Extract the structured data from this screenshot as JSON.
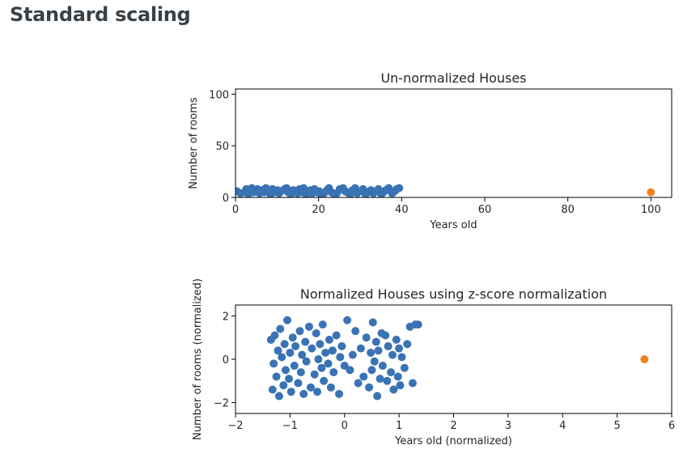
{
  "page": {
    "heading": "Standard scaling"
  },
  "chart_data": [
    {
      "type": "scatter",
      "title": "Un-normalized Houses",
      "xlabel": "Years old",
      "ylabel": "Number of rooms",
      "xlim": [
        0,
        105
      ],
      "ylim": [
        0,
        105
      ],
      "xticks": [
        "0",
        "20",
        "40",
        "60",
        "80",
        "100"
      ],
      "yticks": [
        "0",
        "50",
        "100"
      ],
      "series": [
        {
          "color": "#3a73b4",
          "x": [
            0.3,
            1.2,
            2.1,
            2.6,
            3.1,
            3.6,
            3.9,
            4.4,
            4.8,
            5.3,
            5.8,
            6.4,
            6.9,
            7.3,
            7.8,
            8.4,
            8.9,
            9.5,
            10.1,
            10.5,
            11.0,
            11.8,
            12.3,
            12.7,
            13.3,
            13.9,
            14.3,
            14.9,
            15.4,
            15.9,
            16.4,
            17.0,
            17.6,
            18.1,
            18.5,
            19.0,
            19.6,
            20.1,
            20.6,
            21.3,
            22.0,
            22.5,
            23.1,
            23.8,
            24.4,
            25.1,
            25.9,
            26.4,
            26.9,
            27.6,
            28.2,
            28.8,
            29.3,
            29.9,
            30.7,
            31.3,
            32.0,
            32.6,
            33.2,
            33.9,
            34.4,
            35.1,
            35.6,
            36.2,
            36.9,
            37.7,
            38.3,
            38.8,
            39.4
          ],
          "y": [
            6,
            4,
            5,
            8,
            3,
            7,
            9,
            5,
            6,
            8,
            4,
            7,
            5,
            9,
            6,
            3,
            8,
            5,
            7,
            4,
            6,
            8,
            9,
            5,
            3,
            7,
            6,
            4,
            8,
            5,
            9,
            3,
            6,
            7,
            4,
            8,
            5,
            6,
            3,
            4,
            7,
            9,
            5,
            3,
            4,
            8,
            9,
            6,
            5,
            3,
            7,
            9,
            4,
            6,
            8,
            3,
            5,
            7,
            4,
            6,
            8,
            3,
            5,
            7,
            9,
            4,
            6,
            8,
            9
          ]
        },
        {
          "color": "#f08220",
          "x": [
            100
          ],
          "y": [
            5
          ]
        }
      ]
    },
    {
      "type": "scatter",
      "title": "Normalized Houses using z-score normalization",
      "xlabel": "Years old (normalized)",
      "ylabel": "Number of rooms (normalized)",
      "xlim": [
        -2,
        6
      ],
      "ylim": [
        -2.5,
        2.5
      ],
      "xticks": [
        "−2",
        "−1",
        "0",
        "1",
        "2",
        "3",
        "4",
        "5",
        "6"
      ],
      "yticks": [
        "−2",
        "0",
        "2"
      ],
      "series": [
        {
          "color": "#3a73b4",
          "x": [
            -1.35,
            -1.32,
            -1.3,
            -1.28,
            -1.25,
            -1.22,
            -1.2,
            -1.18,
            -1.15,
            -1.12,
            -1.1,
            -1.08,
            -1.05,
            -1.02,
            -1.0,
            -0.98,
            -0.95,
            -0.92,
            -0.9,
            -0.85,
            -0.82,
            -0.8,
            -0.78,
            -0.75,
            -0.72,
            -0.7,
            -0.65,
            -0.62,
            -0.6,
            -0.55,
            -0.52,
            -0.5,
            -0.48,
            -0.45,
            -0.42,
            -0.4,
            -0.38,
            -0.35,
            -0.3,
            -0.28,
            -0.25,
            -0.22,
            -0.2,
            -0.15,
            -0.1,
            -0.08,
            -0.05,
            0.0,
            0.05,
            0.1,
            0.15,
            0.2,
            0.25,
            0.3,
            0.35,
            0.4,
            0.45,
            0.48,
            0.5,
            0.52,
            0.55,
            0.58,
            0.6,
            0.62,
            0.65,
            0.68,
            0.7,
            0.75,
            0.78,
            0.8,
            0.85,
            0.88,
            0.9,
            0.95,
            0.98,
            1.0,
            1.02,
            1.05,
            1.1,
            1.15,
            1.2,
            1.25,
            1.3,
            1.35
          ],
          "y": [
            0.9,
            -1.4,
            -0.2,
            1.1,
            -0.8,
            0.4,
            -1.7,
            1.4,
            0.1,
            -1.2,
            0.7,
            -0.5,
            1.8,
            -0.9,
            0.3,
            -1.5,
            1.0,
            -0.3,
            0.6,
            -1.1,
            1.3,
            -0.6,
            0.2,
            -1.6,
            0.8,
            -0.1,
            1.5,
            -1.3,
            0.5,
            -0.7,
            1.2,
            -1.5,
            0.0,
            0.7,
            -0.4,
            1.6,
            -1.0,
            0.3,
            -0.2,
            0.9,
            -1.3,
            0.4,
            -0.6,
            1.1,
            -1.6,
            0.1,
            0.6,
            -0.3,
            1.8,
            -0.5,
            0.2,
            1.3,
            -1.1,
            0.5,
            -0.8,
            1.0,
            -1.3,
            0.3,
            -0.5,
            1.7,
            -0.1,
            0.8,
            -1.7,
            0.4,
            -0.9,
            1.2,
            -0.3,
            1.1,
            -1.0,
            0.6,
            -0.6,
            0.2,
            -1.4,
            0.9,
            -0.8,
            0.5,
            -1.2,
            0.1,
            -0.4,
            0.7,
            1.5,
            -1.1,
            1.6,
            1.6
          ]
        },
        {
          "color": "#f08220",
          "x": [
            5.5
          ],
          "y": [
            0.0
          ]
        }
      ]
    }
  ]
}
